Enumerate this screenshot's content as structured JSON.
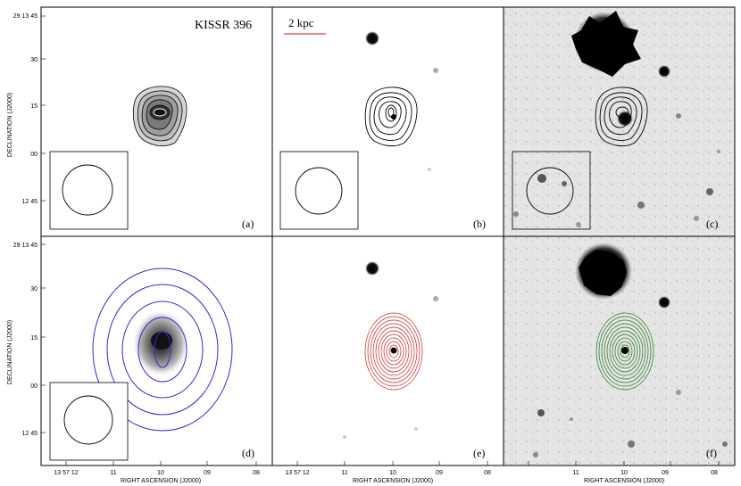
{
  "figure": {
    "title": "KISSR 396",
    "scale_bar_label": "2 kpc",
    "y_axis_label": "DECLINATION (J2000)",
    "x_axis_label": "RIGHT ASCENSION (J2000)",
    "dec_ticks": [
      "29 13 45",
      "30",
      "15",
      "00",
      "12 45"
    ],
    "ra_ticks": [
      "13 57 12",
      "11",
      "10",
      "09",
      "08"
    ],
    "panels": [
      {
        "id": "a",
        "label": "(a)"
      },
      {
        "id": "b",
        "label": "(b)"
      },
      {
        "id": "c",
        "label": "(c)"
      },
      {
        "id": "d",
        "label": "(d)"
      },
      {
        "id": "e",
        "label": "(e)"
      },
      {
        "id": "f",
        "label": "(f)"
      }
    ],
    "colors": {
      "contour_black": "#000000",
      "contour_blue": "#2b2bd6",
      "contour_red": "#cc2222",
      "contour_green": "#1f7a1f",
      "scale_bar": "#e06060"
    }
  }
}
